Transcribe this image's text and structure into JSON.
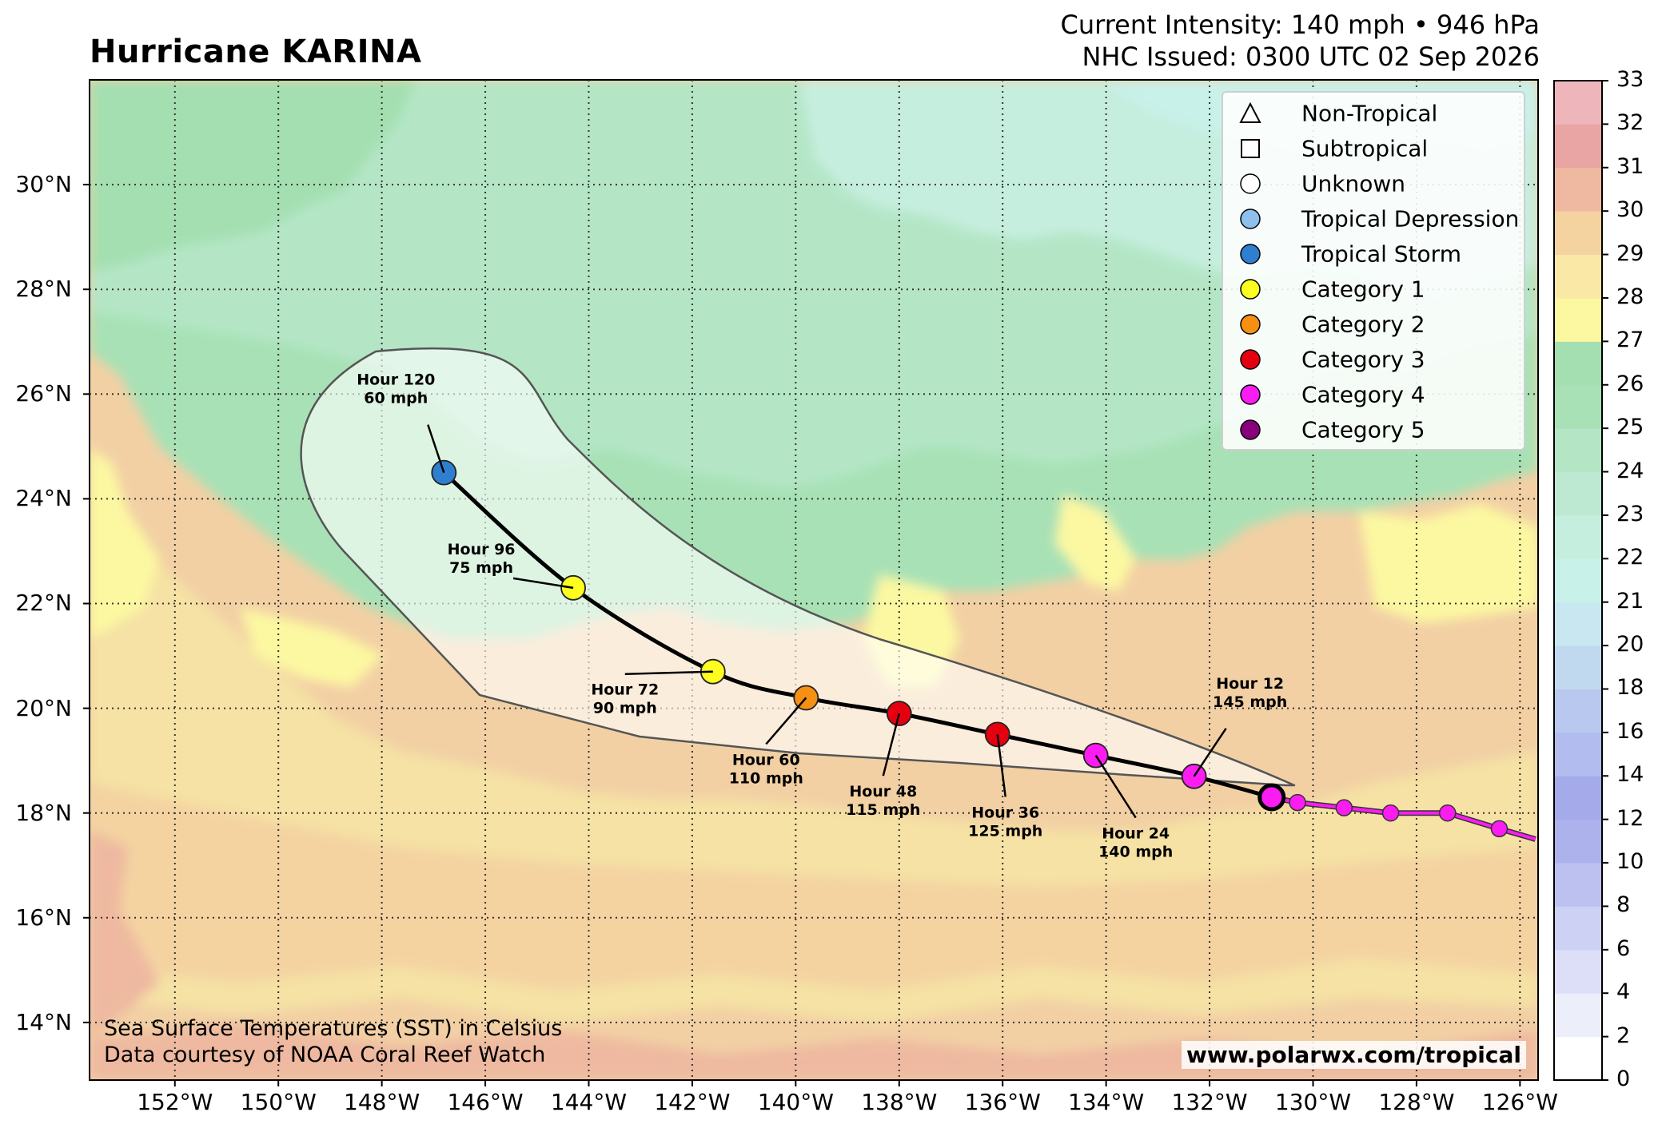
{
  "title": "Hurricane KARINA",
  "header": {
    "intensity": "Current Intensity: 140 mph • 946 hPa",
    "issued": "NHC Issued: 0300 UTC 02 Sep 2026"
  },
  "lat_labels": [
    "30°N",
    "28°N",
    "26°N",
    "24°N",
    "22°N",
    "20°N",
    "18°N",
    "16°N",
    "14°N"
  ],
  "lon_labels": [
    "152°W",
    "150°W",
    "148°W",
    "146°W",
    "144°W",
    "142°W",
    "140°W",
    "138°W",
    "136°W",
    "134°W",
    "132°W",
    "130°W",
    "128°W",
    "126°W"
  ],
  "colorbar": {
    "ticks": [
      "0",
      "2",
      "4",
      "6",
      "8",
      "10",
      "12",
      "14",
      "16",
      "18",
      "20",
      "21",
      "22",
      "23",
      "24",
      "25",
      "26",
      "27",
      "28",
      "29",
      "30",
      "31",
      "32",
      "33"
    ],
    "colors": [
      "#ffffff",
      "#eceef9",
      "#dcdff7",
      "#cdd1f4",
      "#bdc1f0",
      "#aeb2ec",
      "#a5aaea",
      "#b2bcee",
      "#b8c8ee",
      "#c1d9ef",
      "#c9e7f1",
      "#c8f1ea",
      "#c6eedf",
      "#bde9d2",
      "#b4e6c6",
      "#a8e1b6",
      "#a4dfb1",
      "#fcf8a1",
      "#f9e8a6",
      "#f4d3a1",
      "#eeb9a0",
      "#e9a5a3",
      "#eeb6bb",
      "#f7d6ee"
    ]
  },
  "legend": [
    {
      "label": "Non-Tropical",
      "symbol": "triangle",
      "color": "#ffffff"
    },
    {
      "label": "Subtropical",
      "symbol": "square",
      "color": "#ffffff"
    },
    {
      "label": "Unknown",
      "symbol": "circle",
      "color": "#ffffff"
    },
    {
      "label": "Tropical Depression",
      "symbol": "circle",
      "color": "#8ec0ee"
    },
    {
      "label": "Tropical Storm",
      "symbol": "circle",
      "color": "#2f7fd0"
    },
    {
      "label": "Category 1",
      "symbol": "circle",
      "color": "#fdfd20"
    },
    {
      "label": "Category 2",
      "symbol": "circle",
      "color": "#f69012"
    },
    {
      "label": "Category 3",
      "symbol": "circle",
      "color": "#e5000f"
    },
    {
      "label": "Category 4",
      "symbol": "circle",
      "color": "#fb1cf2"
    },
    {
      "label": "Category 5",
      "symbol": "circle",
      "color": "#88007a"
    }
  ],
  "forecast_points": [
    {
      "line1": "Hour 12",
      "line2": "145 mph",
      "lon": -132.3,
      "lat": 18.7,
      "color": "#fb1cf2"
    },
    {
      "line1": "Hour 24",
      "line2": "140 mph",
      "lon": -134.2,
      "lat": 19.1,
      "color": "#fb1cf2"
    },
    {
      "line1": "Hour 36",
      "line2": "125 mph",
      "lon": -136.1,
      "lat": 19.5,
      "color": "#e5000f"
    },
    {
      "line1": "Hour 48",
      "line2": "115 mph",
      "lon": -138.0,
      "lat": 19.9,
      "color": "#e5000f"
    },
    {
      "line1": "Hour 60",
      "line2": "110 mph",
      "lon": -139.8,
      "lat": 20.2,
      "color": "#f69012"
    },
    {
      "line1": "Hour 72",
      "line2": "90 mph",
      "lon": -141.6,
      "lat": 20.7,
      "color": "#fdfd20"
    },
    {
      "line1": "Hour 96",
      "line2": "75 mph",
      "lon": -144.3,
      "lat": 22.3,
      "color": "#fdfd20"
    },
    {
      "line1": "Hour 120",
      "line2": "60 mph",
      "lon": -146.8,
      "lat": 24.5,
      "color": "#2f7fd0"
    }
  ],
  "current_position": {
    "lon": -130.8,
    "lat": 18.3,
    "color": "#fb1cf2"
  },
  "past_track": [
    {
      "lon": -125.7,
      "lat": 17.5
    },
    {
      "lon": -126.4,
      "lat": 17.7
    },
    {
      "lon": -127.4,
      "lat": 18.0
    },
    {
      "lon": -128.5,
      "lat": 18.0
    },
    {
      "lon": -129.4,
      "lat": 18.1
    },
    {
      "lon": -130.3,
      "lat": 18.2
    },
    {
      "lon": -130.8,
      "lat": 18.3
    }
  ],
  "footer": {
    "line1": "Sea Surface Temperatures (SST) in Celsius",
    "line2": "Data courtesy of NOAA Coral Reef Watch",
    "url": "www.polarwx.com/tropical"
  }
}
